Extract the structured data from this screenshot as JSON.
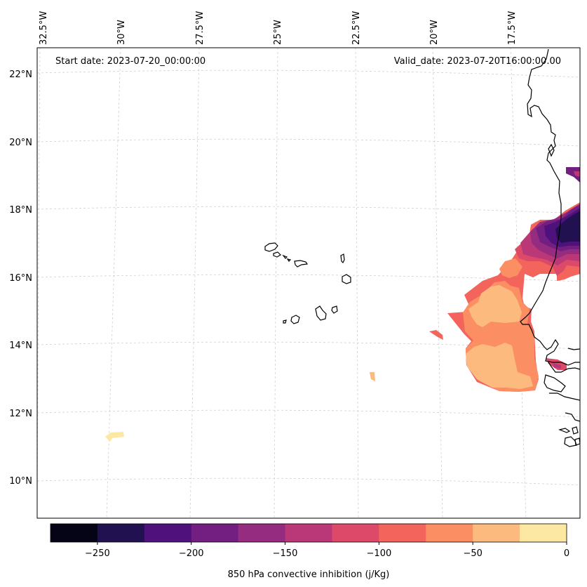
{
  "header": {
    "start_date": "Start date: 2023-07-20_00:00:00",
    "valid_date": "Valid_date: 2023-07-20T16:00:00.00"
  },
  "axes": {
    "lon_labels": [
      "32.5°W",
      "30°W",
      "27.5°W",
      "25°W",
      "22.5°W",
      "20°W",
      "17.5°W"
    ],
    "lat_labels": [
      "22°N",
      "20°N",
      "18°N",
      "16°N",
      "14°N",
      "12°N",
      "10°N"
    ]
  },
  "colorbar": {
    "label": "850 hPa convective inhibition (j/Kg)",
    "ticks": [
      "−250",
      "−200",
      "−150",
      "−100",
      "−50",
      "0"
    ],
    "colors": [
      "#050416",
      "#221150",
      "#4f117b",
      "#731f81",
      "#952c80",
      "#ba3878",
      "#dd4a69",
      "#f3655c",
      "#fc8e64",
      "#fdba7f",
      "#fde8a3"
    ]
  },
  "chart_data": {
    "type": "contourf",
    "variable": "850 hPa convective inhibition",
    "units": "j/Kg",
    "levels": [
      -275,
      -250,
      -225,
      -200,
      -175,
      -150,
      -125,
      -100,
      -75,
      -50,
      -25,
      0
    ],
    "lon_range": [
      "33°W",
      "16°W"
    ],
    "lat_range": [
      "9°N",
      "22.5°N"
    ]
  }
}
